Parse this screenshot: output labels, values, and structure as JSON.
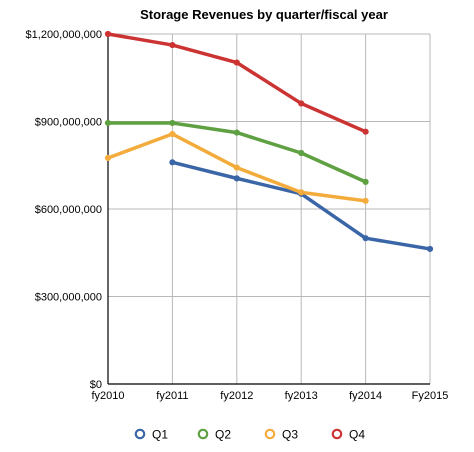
{
  "chart_data": {
    "type": "line",
    "title": "Storage Revenues by quarter/fiscal year",
    "xlabel": "",
    "ylabel": "",
    "categories": [
      "fy2010",
      "fy2011",
      "fy2012",
      "fy2013",
      "fy2014",
      "Fy2015"
    ],
    "ylim": [
      0,
      1200000000
    ],
    "yticks": [
      0,
      300000000,
      600000000,
      900000000,
      1200000000
    ],
    "ytick_labels": [
      "$0",
      "$300,000,000",
      "$600,000,000",
      "$900,000,000",
      "$1,200,000,000"
    ],
    "grid": true,
    "legend_position": "bottom",
    "series": [
      {
        "name": "Q1",
        "color": "#3a66a7",
        "values": [
          null,
          760000000,
          705000000,
          652000000,
          500000000,
          463000000
        ]
      },
      {
        "name": "Q2",
        "color": "#5fa043",
        "values": [
          895000000,
          895000000,
          862000000,
          792000000,
          693000000,
          null
        ]
      },
      {
        "name": "Q3",
        "color": "#f3ac3c",
        "values": [
          775000000,
          857000000,
          742000000,
          657000000,
          628000000,
          null
        ]
      },
      {
        "name": "Q4",
        "color": "#cc3333",
        "values": [
          1200000000,
          1162000000,
          1102000000,
          962000000,
          865000000,
          null
        ]
      }
    ]
  }
}
